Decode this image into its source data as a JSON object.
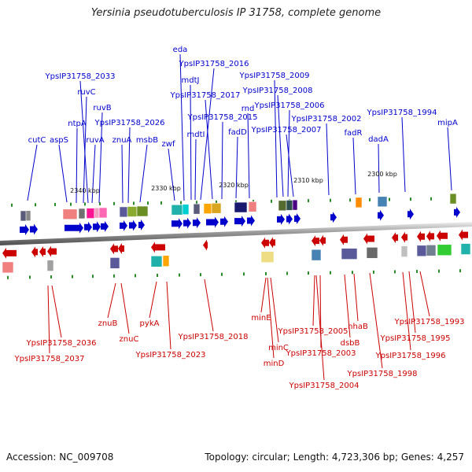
{
  "title": "Yersinia pseudotuberculosis IP 31758, complete genome",
  "footer": {
    "accession": "Accession: NC_009708",
    "stats": "Topology: circular; Length: 4,723,306 bp; Genes: 4,257"
  },
  "scale_ticks": [
    "2340 kbp",
    "2330 kbp",
    "2320 kbp",
    "2310 kbp",
    "2300 kbp"
  ],
  "forward_genes": [
    "cutC",
    "aspS",
    "ntpA",
    "ruvC",
    "YpsIP31758_2033",
    "ruvA",
    "ruvB",
    "znuA",
    "YpsIP31758_2026",
    "msbB",
    "zwf",
    "eda",
    "mdtJ",
    "mdtI",
    "YpsIP31758_2016",
    "YpsIP31758_2017",
    "YpsIP31758_2015",
    "fadD",
    "rnd",
    "YpsIP31758_2009",
    "YpsIP31758_2008",
    "YpsIP31758_2006",
    "YpsIP31758_2007",
    "YpsIP31758_2002",
    "fadR",
    "dadA",
    "YpsIP31758_1994",
    "mipA"
  ],
  "reverse_genes": [
    "YpsIP31758_2036",
    "YpsIP31758_2037",
    "znuB",
    "znuC",
    "pykA",
    "YpsIP31758_2023",
    "YpsIP31758_2018",
    "minE",
    "minC",
    "minD",
    "YpsIP31758_2005",
    "YpsIP31758_2003",
    "YpsIP31758_2004",
    "dsbB",
    "nhaB",
    "YpsIP31758_1998",
    "YpsIP31758_1996",
    "YpsIP31758_1995",
    "YpsIP31758_1993"
  ],
  "colors": {
    "forward": "#0000cc",
    "reverse": "#cc0000",
    "backbone": "#888888",
    "tick_marks": "#2a8a2a"
  }
}
